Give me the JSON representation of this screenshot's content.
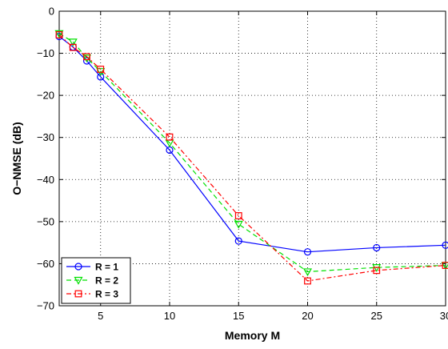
{
  "chart_data": {
    "type": "line",
    "xlabel": "Memory M",
    "ylabel": "O−NMSE (dB)",
    "xlim": [
      2,
      30
    ],
    "ylim": [
      -70,
      0
    ],
    "xticks": [
      5,
      10,
      15,
      20,
      25,
      30
    ],
    "xtick_labels": [
      "5",
      "10",
      "15",
      "20",
      "25",
      "30"
    ],
    "yticks": [
      0,
      -10,
      -20,
      -30,
      -40,
      -50,
      -60,
      -70
    ],
    "ytick_labels": [
      "0",
      "−10",
      "−20",
      "−30",
      "−40",
      "−50",
      "−60",
      "−70"
    ],
    "grid": true,
    "legend_position": "bottom-left",
    "series": [
      {
        "name": "R = 1",
        "color": "#0000ff",
        "dash": "solid",
        "marker": "circle",
        "x": [
          2,
          3,
          4,
          5,
          10,
          15,
          20,
          25,
          30
        ],
        "y": [
          -6,
          -8.5,
          -11.8,
          -15.6,
          -33,
          -54.6,
          -57.2,
          -56.2,
          -55.6
        ]
      },
      {
        "name": "R = 2",
        "color": "#00e000",
        "dash": "dash",
        "marker": "triangle-down",
        "x": [
          2,
          3,
          4,
          5,
          10,
          15,
          20,
          25,
          30
        ],
        "y": [
          -5.3,
          -7.3,
          -11.1,
          -14.3,
          -31.3,
          -50.6,
          -61.9,
          -60.9,
          -60.4
        ]
      },
      {
        "name": "R = 3",
        "color": "#ff0000",
        "dash": "dashdot",
        "marker": "square",
        "x": [
          2,
          3,
          4,
          5,
          10,
          15,
          20,
          25,
          30
        ],
        "y": [
          -5.6,
          -8.6,
          -10.8,
          -13.8,
          -29.9,
          -48.6,
          -64.1,
          -61.6,
          -60.4
        ]
      }
    ]
  }
}
